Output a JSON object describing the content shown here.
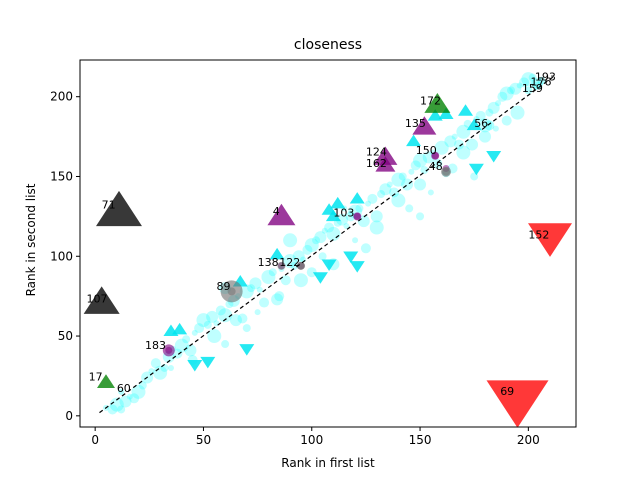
{
  "chart_data": {
    "type": "scatter",
    "title": "closeness",
    "xlabel": "Rank in first list",
    "ylabel": "Rank in second list",
    "xlim": [
      -7,
      222
    ],
    "ylim": [
      -7,
      223
    ],
    "xticks": [
      0,
      50,
      100,
      150,
      200
    ],
    "yticks": [
      0,
      50,
      100,
      150,
      200
    ],
    "grid": false,
    "colors": {
      "circle": "#00ffff",
      "up": "#00e5f0",
      "down": "#00e5f0",
      "purple": "#800080",
      "green": "#008000",
      "black": "#000000",
      "red": "#ff0000",
      "gray": "#707070"
    },
    "diagonal": {
      "x": [
        2,
        212
      ],
      "y": [
        2,
        213
      ],
      "style": "dashed"
    },
    "circles": [
      [
        5,
        5
      ],
      [
        8,
        4
      ],
      [
        10,
        7
      ],
      [
        12,
        4
      ],
      [
        14,
        9
      ],
      [
        16,
        12
      ],
      [
        18,
        11
      ],
      [
        20,
        15
      ],
      [
        22,
        19
      ],
      [
        24,
        24
      ],
      [
        26,
        28
      ],
      [
        28,
        33
      ],
      [
        30,
        27
      ],
      [
        32,
        30
      ],
      [
        34,
        37
      ],
      [
        36,
        42
      ],
      [
        38,
        39
      ],
      [
        40,
        44
      ],
      [
        42,
        48
      ],
      [
        44,
        41
      ],
      [
        46,
        52
      ],
      [
        48,
        55
      ],
      [
        50,
        60
      ],
      [
        52,
        57
      ],
      [
        54,
        62
      ],
      [
        56,
        58
      ],
      [
        58,
        66
      ],
      [
        60,
        63
      ],
      [
        62,
        70
      ],
      [
        64,
        72
      ],
      [
        66,
        75
      ],
      [
        68,
        61
      ],
      [
        70,
        78
      ],
      [
        72,
        80
      ],
      [
        74,
        83
      ],
      [
        76,
        79
      ],
      [
        78,
        71
      ],
      [
        80,
        87
      ],
      [
        82,
        90
      ],
      [
        84,
        73
      ],
      [
        86,
        92
      ],
      [
        88,
        85
      ],
      [
        90,
        97
      ],
      [
        92,
        94
      ],
      [
        94,
        100
      ],
      [
        96,
        98
      ],
      [
        98,
        104
      ],
      [
        100,
        107
      ],
      [
        102,
        110
      ],
      [
        104,
        112
      ],
      [
        106,
        116
      ],
      [
        108,
        118
      ],
      [
        110,
        114
      ],
      [
        112,
        121
      ],
      [
        114,
        123
      ],
      [
        116,
        119
      ],
      [
        118,
        125
      ],
      [
        120,
        128
      ],
      [
        122,
        130
      ],
      [
        124,
        122
      ],
      [
        126,
        133
      ],
      [
        128,
        136
      ],
      [
        130,
        118
      ],
      [
        132,
        139
      ],
      [
        134,
        142
      ],
      [
        136,
        145
      ],
      [
        138,
        140
      ],
      [
        140,
        148
      ],
      [
        142,
        150
      ],
      [
        144,
        145
      ],
      [
        146,
        153
      ],
      [
        148,
        157
      ],
      [
        150,
        160
      ],
      [
        152,
        154
      ],
      [
        154,
        162
      ],
      [
        156,
        165
      ],
      [
        158,
        158
      ],
      [
        160,
        168
      ],
      [
        162,
        152
      ],
      [
        164,
        172
      ],
      [
        166,
        175
      ],
      [
        168,
        170
      ],
      [
        170,
        178
      ],
      [
        172,
        183
      ],
      [
        174,
        170
      ],
      [
        176,
        186
      ],
      [
        178,
        188
      ],
      [
        180,
        182
      ],
      [
        182,
        190
      ],
      [
        184,
        193
      ],
      [
        186,
        196
      ],
      [
        188,
        200
      ],
      [
        190,
        202
      ],
      [
        192,
        204
      ],
      [
        194,
        205
      ],
      [
        196,
        207
      ],
      [
        198,
        209
      ],
      [
        200,
        211
      ],
      [
        202,
        212
      ],
      [
        204,
        208
      ],
      [
        35,
        30
      ],
      [
        45,
        35
      ],
      [
        55,
        50
      ],
      [
        60,
        45
      ],
      [
        65,
        60
      ],
      [
        75,
        65
      ],
      [
        85,
        75
      ],
      [
        95,
        85
      ],
      [
        105,
        100
      ],
      [
        110,
        95
      ],
      [
        120,
        110
      ],
      [
        125,
        105
      ],
      [
        140,
        135
      ],
      [
        145,
        130
      ],
      [
        150,
        145
      ],
      [
        155,
        140
      ],
      [
        165,
        155
      ],
      [
        170,
        165
      ],
      [
        175,
        150
      ],
      [
        180,
        175
      ],
      [
        185,
        180
      ],
      [
        190,
        185
      ],
      [
        195,
        190
      ],
      [
        150,
        125
      ],
      [
        130,
        125
      ],
      [
        115,
        130
      ],
      [
        100,
        90
      ],
      [
        90,
        110
      ],
      [
        70,
        55
      ],
      [
        60,
        80
      ]
    ],
    "triangles_up_cyan": [
      [
        35,
        53
      ],
      [
        39,
        54
      ],
      [
        67,
        84
      ],
      [
        84,
        101
      ],
      [
        108,
        129
      ],
      [
        110,
        125
      ],
      [
        112,
        133
      ],
      [
        121,
        136
      ],
      [
        147,
        172
      ],
      [
        157,
        188
      ],
      [
        162,
        189
      ],
      [
        171,
        191
      ],
      [
        175,
        182
      ]
    ],
    "triangles_down_cyan": [
      [
        46,
        32
      ],
      [
        52,
        34
      ],
      [
        70,
        42
      ],
      [
        104,
        87
      ],
      [
        108,
        95
      ],
      [
        118,
        100
      ],
      [
        121,
        94
      ],
      [
        176,
        155
      ],
      [
        184,
        163
      ]
    ],
    "purple_circles": [
      [
        34,
        41
      ],
      [
        121,
        125
      ],
      [
        157,
        163
      ],
      [
        162,
        155
      ],
      [
        95,
        94
      ],
      [
        86,
        94
      ]
    ],
    "gray_circles": [
      [
        63,
        78
      ],
      [
        95,
        94
      ],
      [
        162,
        153
      ]
    ],
    "special_markers": [
      {
        "label": "183",
        "x": 34,
        "y": 41,
        "marker": "circle",
        "color": "purple",
        "size": 6
      },
      {
        "label": "89",
        "x": 63,
        "y": 78,
        "marker": "circle",
        "color": "gray",
        "size": 11
      },
      {
        "label": "138",
        "x": 86,
        "y": 94,
        "marker": "circle",
        "color": "gray",
        "size": 4
      },
      {
        "label": "122",
        "x": 95,
        "y": 94,
        "marker": "circle",
        "color": "gray",
        "size": 4
      },
      {
        "label": "103",
        "x": 121,
        "y": 125,
        "marker": "circle",
        "color": "purple",
        "size": 4
      },
      {
        "label": "150",
        "x": 157,
        "y": 163,
        "marker": "circle",
        "color": "purple",
        "size": 4
      },
      {
        "label": "48",
        "x": 162,
        "y": 153,
        "marker": "circle",
        "color": "gray",
        "size": 5
      },
      {
        "label": "4",
        "x": 86,
        "y": 125,
        "marker": "up",
        "color": "purple",
        "size": 14
      },
      {
        "label": "124",
        "x": 134,
        "y": 162,
        "marker": "up",
        "color": "purple",
        "size": 12
      },
      {
        "label": "162",
        "x": 134,
        "y": 157,
        "marker": "up",
        "color": "purple",
        "size": 10
      },
      {
        "label": "135",
        "x": 152,
        "y": 181,
        "marker": "up",
        "color": "purple",
        "size": 12
      },
      {
        "label": "172",
        "x": 158,
        "y": 195,
        "marker": "up",
        "color": "green",
        "size": 13
      },
      {
        "label": "17",
        "x": 5,
        "y": 21,
        "marker": "up",
        "color": "green",
        "size": 9
      },
      {
        "label": "107",
        "x": 3,
        "y": 71,
        "marker": "up",
        "color": "black",
        "size": 18
      },
      {
        "label": "71",
        "x": 11,
        "y": 128,
        "marker": "up",
        "color": "black",
        "size": 23
      },
      {
        "label": "152",
        "x": 210,
        "y": 112,
        "marker": "down",
        "color": "red",
        "size": 22
      },
      {
        "label": "69",
        "x": 195,
        "y": 10,
        "marker": "down",
        "color": "red",
        "size": 31
      },
      {
        "label": "56",
        "x": 182,
        "y": 182,
        "marker": "circle",
        "color": "circle",
        "size": 5
      },
      {
        "label": "60",
        "x": 12,
        "y": 15,
        "marker": "circle",
        "color": "circle",
        "size": 3
      },
      {
        "label": "193",
        "x": 206,
        "y": 210,
        "marker": "circle",
        "color": "circle",
        "size": 4
      },
      {
        "label": "176",
        "x": 204,
        "y": 207,
        "marker": "circle",
        "color": "circle",
        "size": 4
      },
      {
        "label": "159",
        "x": 200,
        "y": 204,
        "marker": "circle",
        "color": "circle",
        "size": 4
      }
    ],
    "annotations": [
      {
        "text": "193",
        "x": 203,
        "y": 210
      },
      {
        "text": "176",
        "x": 201,
        "y": 207
      },
      {
        "text": "159",
        "x": 197,
        "y": 203
      },
      {
        "text": "172",
        "x": 150,
        "y": 195
      },
      {
        "text": "135",
        "x": 143,
        "y": 181
      },
      {
        "text": "56",
        "x": 175,
        "y": 181
      },
      {
        "text": "124",
        "x": 125,
        "y": 163
      },
      {
        "text": "150",
        "x": 148,
        "y": 164
      },
      {
        "text": "162",
        "x": 125,
        "y": 156
      },
      {
        "text": "48",
        "x": 154,
        "y": 154
      },
      {
        "text": "4",
        "x": 82,
        "y": 126
      },
      {
        "text": "103",
        "x": 110,
        "y": 125
      },
      {
        "text": "71",
        "x": 3,
        "y": 130
      },
      {
        "text": "152",
        "x": 200,
        "y": 111
      },
      {
        "text": "138",
        "x": 75,
        "y": 94
      },
      {
        "text": "122",
        "x": 85,
        "y": 94
      },
      {
        "text": "107",
        "x": -4,
        "y": 71
      },
      {
        "text": "89",
        "x": 56,
        "y": 79
      },
      {
        "text": "183",
        "x": 23,
        "y": 42
      },
      {
        "text": "17",
        "x": -3,
        "y": 22
      },
      {
        "text": "60",
        "x": 10,
        "y": 15
      },
      {
        "text": "69",
        "x": 187,
        "y": 13
      }
    ]
  }
}
